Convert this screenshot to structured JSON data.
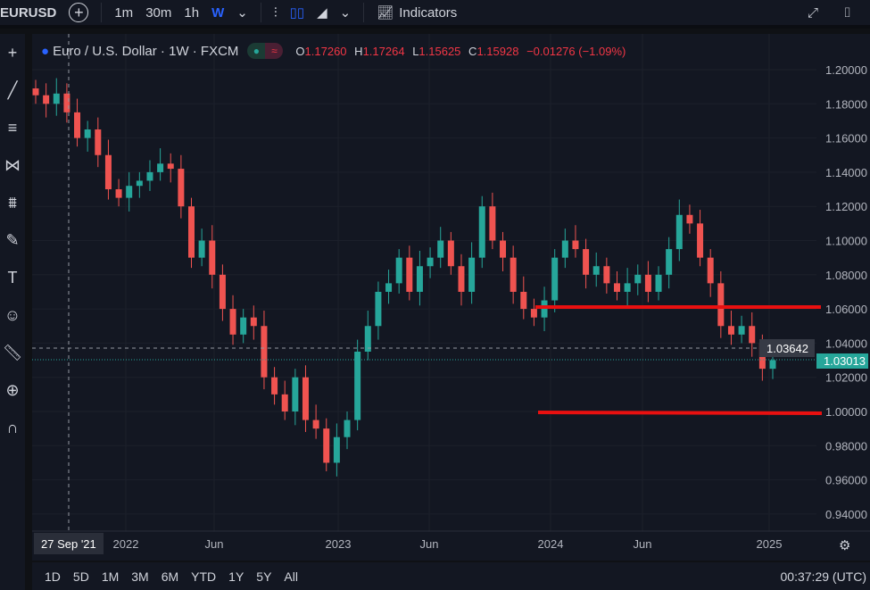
{
  "toolbar": {
    "symbol": "EURUSD",
    "intervals": [
      "1m",
      "30m",
      "1h",
      "W"
    ],
    "indicators": "Indicators"
  },
  "legend": {
    "title": "Euro / U.S. Dollar · 1W · FXCM",
    "o_label": "O",
    "o": "1.17260",
    "h_label": "H",
    "h": "1.17264",
    "l_label": "L",
    "l": "1.15625",
    "c_label": "C",
    "c": "1.15928",
    "change": "−0.01276 (−1.09%)"
  },
  "ranges": [
    "1D",
    "5D",
    "1M",
    "3M",
    "6M",
    "YTD",
    "1Y",
    "5Y",
    "All"
  ],
  "clock": "00:37:29 (UTC)",
  "crosshair_date": "27 Sep '21",
  "crosshair_price": "1.03642",
  "last_price": "1.03013",
  "colors": {
    "up": "#26a69a",
    "down": "#ef5350",
    "line": "#e91010",
    "bg": "#131722"
  },
  "chart_data": {
    "type": "candlestick",
    "title": "Euro / U.S. Dollar · 1W · FXCM",
    "ylim": [
      0.93,
      1.21
    ],
    "y_ticks": [
      "1.20000",
      "1.18000",
      "1.16000",
      "1.14000",
      "1.12000",
      "1.10000",
      "1.08000",
      "1.06000",
      "1.04000",
      "1.02000",
      "1.00000",
      "0.98000",
      "0.96000",
      "0.94000"
    ],
    "x_ticks": [
      "2022",
      "Jun",
      "2023",
      "Jun",
      "2024",
      "Jun",
      "2025"
    ],
    "closes": [
      1.185,
      1.18,
      1.186,
      1.175,
      1.16,
      1.165,
      1.15,
      1.13,
      1.125,
      1.132,
      1.135,
      1.14,
      1.145,
      1.142,
      1.12,
      1.09,
      1.1,
      1.08,
      1.06,
      1.045,
      1.055,
      1.05,
      1.02,
      1.01,
      1.0,
      1.02,
      0.995,
      0.99,
      0.97,
      0.985,
      0.995,
      1.035,
      1.05,
      1.07,
      1.075,
      1.09,
      1.07,
      1.085,
      1.09,
      1.1,
      1.085,
      1.07,
      1.09,
      1.12,
      1.1,
      1.09,
      1.07,
      1.06,
      1.055,
      1.065,
      1.09,
      1.1,
      1.095,
      1.08,
      1.085,
      1.075,
      1.07,
      1.075,
      1.08,
      1.07,
      1.08,
      1.095,
      1.115,
      1.11,
      1.09,
      1.075,
      1.05,
      1.045,
      1.05,
      1.04,
      1.025,
      1.03
    ],
    "horizontal_lines": [
      1.06,
      1.0
    ]
  }
}
